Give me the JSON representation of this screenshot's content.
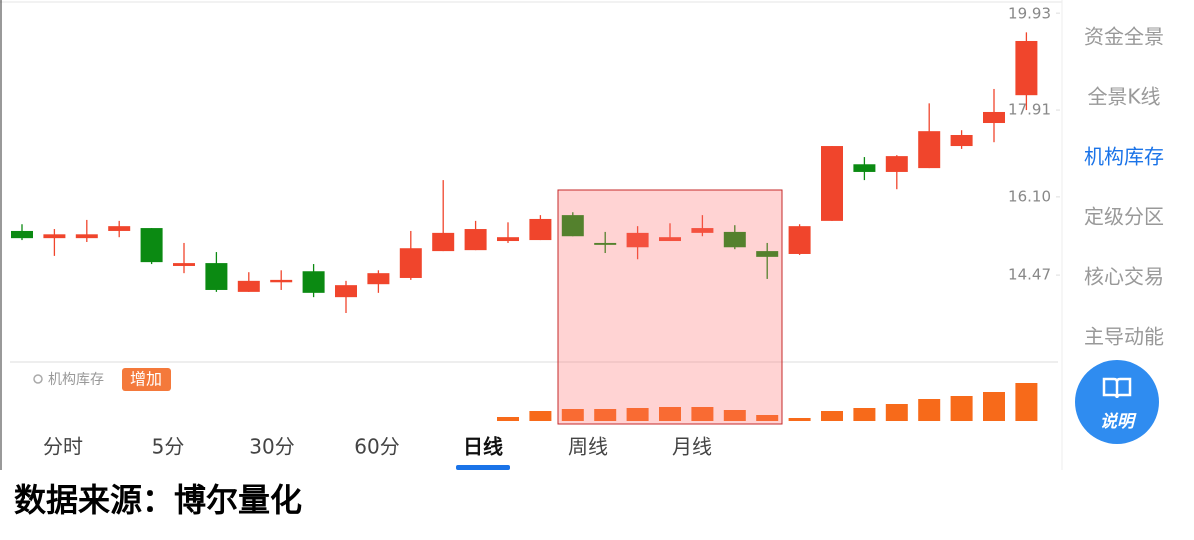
{
  "chart_data": {
    "type": "candlestick",
    "open": [
      15.39,
      15.24,
      15.24,
      15.39,
      15.45,
      14.66,
      14.72,
      14.12,
      14.32,
      14.55,
      14.01,
      14.28,
      14.41,
      14.97,
      14.99,
      15.18,
      15.2,
      15.72,
      15.14,
      15.05,
      15.18,
      15.35,
      15.37,
      14.97,
      14.91,
      15.6,
      16.78,
      16.62,
      16.7,
      17.16,
      17.64,
      18.22
    ],
    "high": [
      15.53,
      15.43,
      15.62,
      15.6,
      15.45,
      15.14,
      14.95,
      14.53,
      14.57,
      14.7,
      14.35,
      14.57,
      15.39,
      16.45,
      15.6,
      15.57,
      15.72,
      15.78,
      15.37,
      15.49,
      15.55,
      15.72,
      15.51,
      15.14,
      15.53,
      17.16,
      16.93,
      16.97,
      18.05,
      17.49,
      18.35,
      19.53
    ],
    "low": [
      15.2,
      14.87,
      15.16,
      15.26,
      14.7,
      14.51,
      14.12,
      14.12,
      14.16,
      14.01,
      13.68,
      14.1,
      14.37,
      14.97,
      14.99,
      15.14,
      15.2,
      15.28,
      14.93,
      14.8,
      15.18,
      15.28,
      15.01,
      14.39,
      14.89,
      15.6,
      16.45,
      16.26,
      16.7,
      17.1,
      17.24,
      17.91
    ],
    "close": [
      15.24,
      15.32,
      15.32,
      15.49,
      14.74,
      14.72,
      14.16,
      14.35,
      14.37,
      14.1,
      14.26,
      14.51,
      15.03,
      15.35,
      15.43,
      15.26,
      15.64,
      15.28,
      15.1,
      15.35,
      15.26,
      15.45,
      15.05,
      14.85,
      15.49,
      17.16,
      16.62,
      16.95,
      17.47,
      17.39,
      17.87,
      19.35
    ],
    "up_color": "#f0452c",
    "down_color": "#0b8a12",
    "ylim": [
      12.7,
      20.1
    ],
    "yticks": [
      14.47,
      {
        "value": 16.1,
        "label": "16.10"
      },
      17.91,
      19.93
    ],
    "indicator": {
      "label": "机构库存",
      "badge": "增加",
      "color": "#f76a1a",
      "ylim": [
        0,
        40
      ],
      "values": [
        null,
        null,
        null,
        null,
        null,
        null,
        null,
        null,
        null,
        null,
        null,
        null,
        null,
        null,
        null,
        4,
        10,
        12,
        12,
        13,
        14,
        14,
        11,
        6,
        3,
        10,
        13,
        17,
        22,
        25,
        29,
        38
      ]
    }
  },
  "tabs": [
    "分时",
    "5分",
    "30分",
    "60分",
    "日线",
    "周线",
    "月线"
  ],
  "active_tab": 4,
  "side_menu": {
    "items": [
      "资金全景",
      "全景K线",
      "机构库存",
      "定级分区",
      "核心交易",
      "主导动能"
    ],
    "active": 2
  },
  "help_button": "说明",
  "footer": "数据来源：博尔量化"
}
